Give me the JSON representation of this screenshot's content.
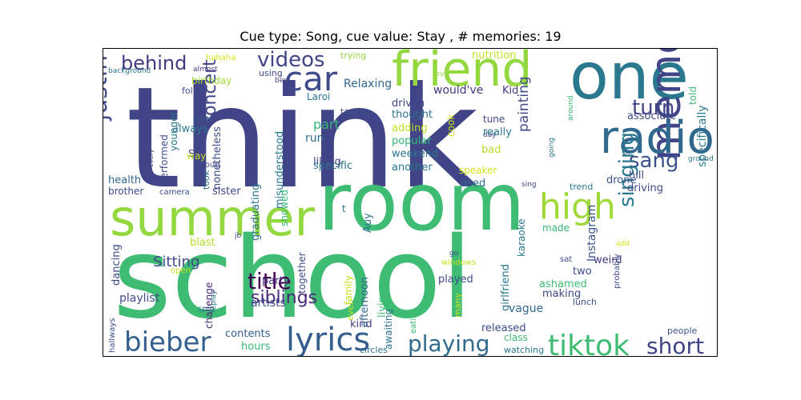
{
  "chart_data": {
    "type": "wordcloud",
    "title": "Cue type: Song, cue value: Stay , # memories: 19",
    "words": [
      {
        "text": "think",
        "color": "#414487"
      },
      {
        "text": "school",
        "color": "#3ebc73"
      },
      {
        "text": "one",
        "color": "#2a788e"
      },
      {
        "text": "room",
        "color": "#3ebc73"
      },
      {
        "text": "summer",
        "color": "#94d840"
      },
      {
        "text": "friend",
        "color": "#94d840"
      },
      {
        "text": "memory",
        "color": "#414487"
      },
      {
        "text": "radio",
        "color": "#31688e"
      },
      {
        "text": "car",
        "color": "#3e4a89"
      },
      {
        "text": "high",
        "color": "#a0da39"
      },
      {
        "text": "lyrics",
        "color": "#355f8d"
      },
      {
        "text": "bieber",
        "color": "#355f8d"
      },
      {
        "text": "tiktok",
        "color": "#3ebc73"
      },
      {
        "text": "playing",
        "color": "#2f6c8e"
      },
      {
        "text": "videos",
        "color": "#414487"
      },
      {
        "text": "justin",
        "color": "#3e4a89"
      },
      {
        "text": "behind",
        "color": "#443a83"
      },
      {
        "text": "turn",
        "color": "#414487"
      },
      {
        "text": "sang",
        "color": "#3b528b"
      },
      {
        "text": "short",
        "color": "#414487"
      },
      {
        "text": "singing",
        "color": "#2a788e"
      },
      {
        "text": "title",
        "color": "#440154"
      },
      {
        "text": "concert",
        "color": "#414487"
      },
      {
        "text": "siblings",
        "color": "#482878"
      },
      {
        "text": "Sitting",
        "color": "#3e4a89"
      },
      {
        "text": "painting",
        "color": "#3e4a89"
      },
      {
        "text": "specifically",
        "color": "#2a788e"
      },
      {
        "text": "Instagram",
        "color": "#3b528b"
      },
      {
        "text": "nutrition",
        "color": "#c2df23"
      },
      {
        "text": "Relaxing",
        "color": "#31688e"
      },
      {
        "text": "would've",
        "color": "#443983"
      },
      {
        "text": "Kid",
        "color": "#443983"
      },
      {
        "text": "driven",
        "color": "#404688"
      },
      {
        "text": "thought",
        "color": "#2e6e8e"
      },
      {
        "text": "adding",
        "color": "#bddf26"
      },
      {
        "text": "run",
        "color": "#31688e"
      },
      {
        "text": "part",
        "color": "#35b779"
      },
      {
        "text": "liking",
        "color": "#414487"
      },
      {
        "text": "popular",
        "color": "#35b779"
      },
      {
        "text": "weekend",
        "color": "#2a788e"
      },
      {
        "text": "specific",
        "color": "#2c738e"
      },
      {
        "text": "another",
        "color": "#2a788e"
      },
      {
        "text": "used",
        "color": "#306a8e"
      },
      {
        "text": "really",
        "color": "#2a788e"
      },
      {
        "text": "tune",
        "color": "#404688"
      },
      {
        "text": "cook",
        "color": "#c8e020"
      },
      {
        "text": "bad",
        "color": "#b5de2b"
      },
      {
        "text": "speaker",
        "color": "#d8e219"
      },
      {
        "text": "drone",
        "color": "#3b528b"
      },
      {
        "text": "associate",
        "color": "#3e4a89"
      },
      {
        "text": "hill",
        "color": "#3e4a89"
      },
      {
        "text": "driving",
        "color": "#3e4a89"
      },
      {
        "text": "told",
        "color": "#3ebc73"
      },
      {
        "text": "trend",
        "color": "#2a788e"
      },
      {
        "text": "karaoke",
        "color": "#2a788e"
      },
      {
        "text": "made",
        "color": "#35b779"
      },
      {
        "text": "weird",
        "color": "#443a83"
      },
      {
        "text": "two",
        "color": "#3e4a89"
      },
      {
        "text": "making",
        "color": "#3e4a89"
      },
      {
        "text": "ashamed",
        "color": "#3ebc73"
      },
      {
        "text": "vague",
        "color": "#31688e"
      },
      {
        "text": "lunch",
        "color": "#3b528b"
      },
      {
        "text": "released",
        "color": "#3e4a89"
      },
      {
        "text": "class",
        "color": "#3ebc73"
      },
      {
        "text": "watching",
        "color": "#2a788e"
      },
      {
        "text": "people",
        "color": "#3b528b"
      },
      {
        "text": "circles",
        "color": "#2c738e"
      },
      {
        "text": "kind",
        "color": "#443983"
      },
      {
        "text": "hours",
        "color": "#35b779"
      },
      {
        "text": "contents",
        "color": "#355f8d"
      },
      {
        "text": "artists",
        "color": "#3e4a89"
      },
      {
        "text": "party",
        "color": "#443983"
      },
      {
        "text": "playlist",
        "color": "#3e4a89"
      },
      {
        "text": "dancing",
        "color": "#3e4a89"
      },
      {
        "text": "challenge",
        "color": "#482878"
      },
      {
        "text": "blast",
        "color": "#b5de2b"
      },
      {
        "text": "brother",
        "color": "#3e4a89"
      },
      {
        "text": "health",
        "color": "#31688e"
      },
      {
        "text": "sister",
        "color": "#3e4a89"
      },
      {
        "text": "Sun",
        "color": "#3e4a89"
      },
      {
        "text": "always",
        "color": "#2a788e"
      },
      {
        "text": "feel",
        "color": "#3b528b"
      },
      {
        "text": "way",
        "color": "#c2df23"
      },
      {
        "text": "birthday",
        "color": "#a0da39"
      },
      {
        "text": "performed",
        "color": "#3e4a89"
      },
      {
        "text": "younger",
        "color": "#2a788e"
      },
      {
        "text": "took",
        "color": "#2c738e"
      },
      {
        "text": "nonetheless",
        "color": "#3e4a89"
      },
      {
        "text": "misunderstood",
        "color": "#2a788e"
      },
      {
        "text": "graduating",
        "color": "#2c738e"
      },
      {
        "text": "showed",
        "color": "#35b779"
      },
      {
        "text": "together",
        "color": "#3e4a89"
      },
      {
        "text": "Laroi",
        "color": "#2a788e"
      },
      {
        "text": "tasong",
        "color": "#3b528b"
      },
      {
        "text": "Auy",
        "color": "#2c738e"
      },
      {
        "text": "family",
        "color": "#c8e020"
      },
      {
        "text": "afternoon",
        "color": "#31688e"
      },
      {
        "text": "even",
        "color": "#c2df23"
      },
      {
        "text": "living",
        "color": "#3ebc73"
      },
      {
        "text": "awaiting",
        "color": "#2c738e"
      },
      {
        "text": "many",
        "color": "#c8e020"
      },
      {
        "text": "played",
        "color": "#3e4a89"
      },
      {
        "text": "girlfriend",
        "color": "#2a788e"
      },
      {
        "text": "hahaha",
        "color": "#d8e219"
      },
      {
        "text": "almost",
        "color": "#443983"
      },
      {
        "text": "using",
        "color": "#3e4a89"
      },
      {
        "text": "best",
        "color": "#443983"
      },
      {
        "text": "trying",
        "color": "#94d840"
      },
      {
        "text": "background",
        "color": "#2a788e"
      },
      {
        "text": "follow",
        "color": "#3e4a89"
      },
      {
        "text": "love",
        "color": "#94d840"
      },
      {
        "text": "ground",
        "color": "#2a788e"
      },
      {
        "text": "around",
        "color": "#35b779"
      },
      {
        "text": "going",
        "color": "#2c738e"
      },
      {
        "text": "day",
        "color": "#3e4a89"
      },
      {
        "text": "sing",
        "color": "#3e4a89"
      },
      {
        "text": "add",
        "color": "#d8e219"
      },
      {
        "text": "sat",
        "color": "#3e4a89"
      },
      {
        "text": "probably",
        "color": "#3e4a89"
      },
      {
        "text": "windows",
        "color": "#c8e020"
      },
      {
        "text": "go",
        "color": "#3e4a89"
      },
      {
        "text": "eating",
        "color": "#3ebc73"
      },
      {
        "text": "spin",
        "color": "#2a788e"
      },
      {
        "text": "replay",
        "color": "#2c738e"
      },
      {
        "text": "open",
        "color": "#c8e020"
      },
      {
        "text": "jb",
        "color": "#3e4a89"
      },
      {
        "text": "loud",
        "color": "#3e4a89"
      },
      {
        "text": "camera",
        "color": "#3e4a89"
      },
      {
        "text": "every",
        "color": "#3e4a89"
      },
      {
        "text": "hallways",
        "color": "#3e4a89"
      },
      {
        "text": "t",
        "color": "#2c738e"
      }
    ]
  }
}
